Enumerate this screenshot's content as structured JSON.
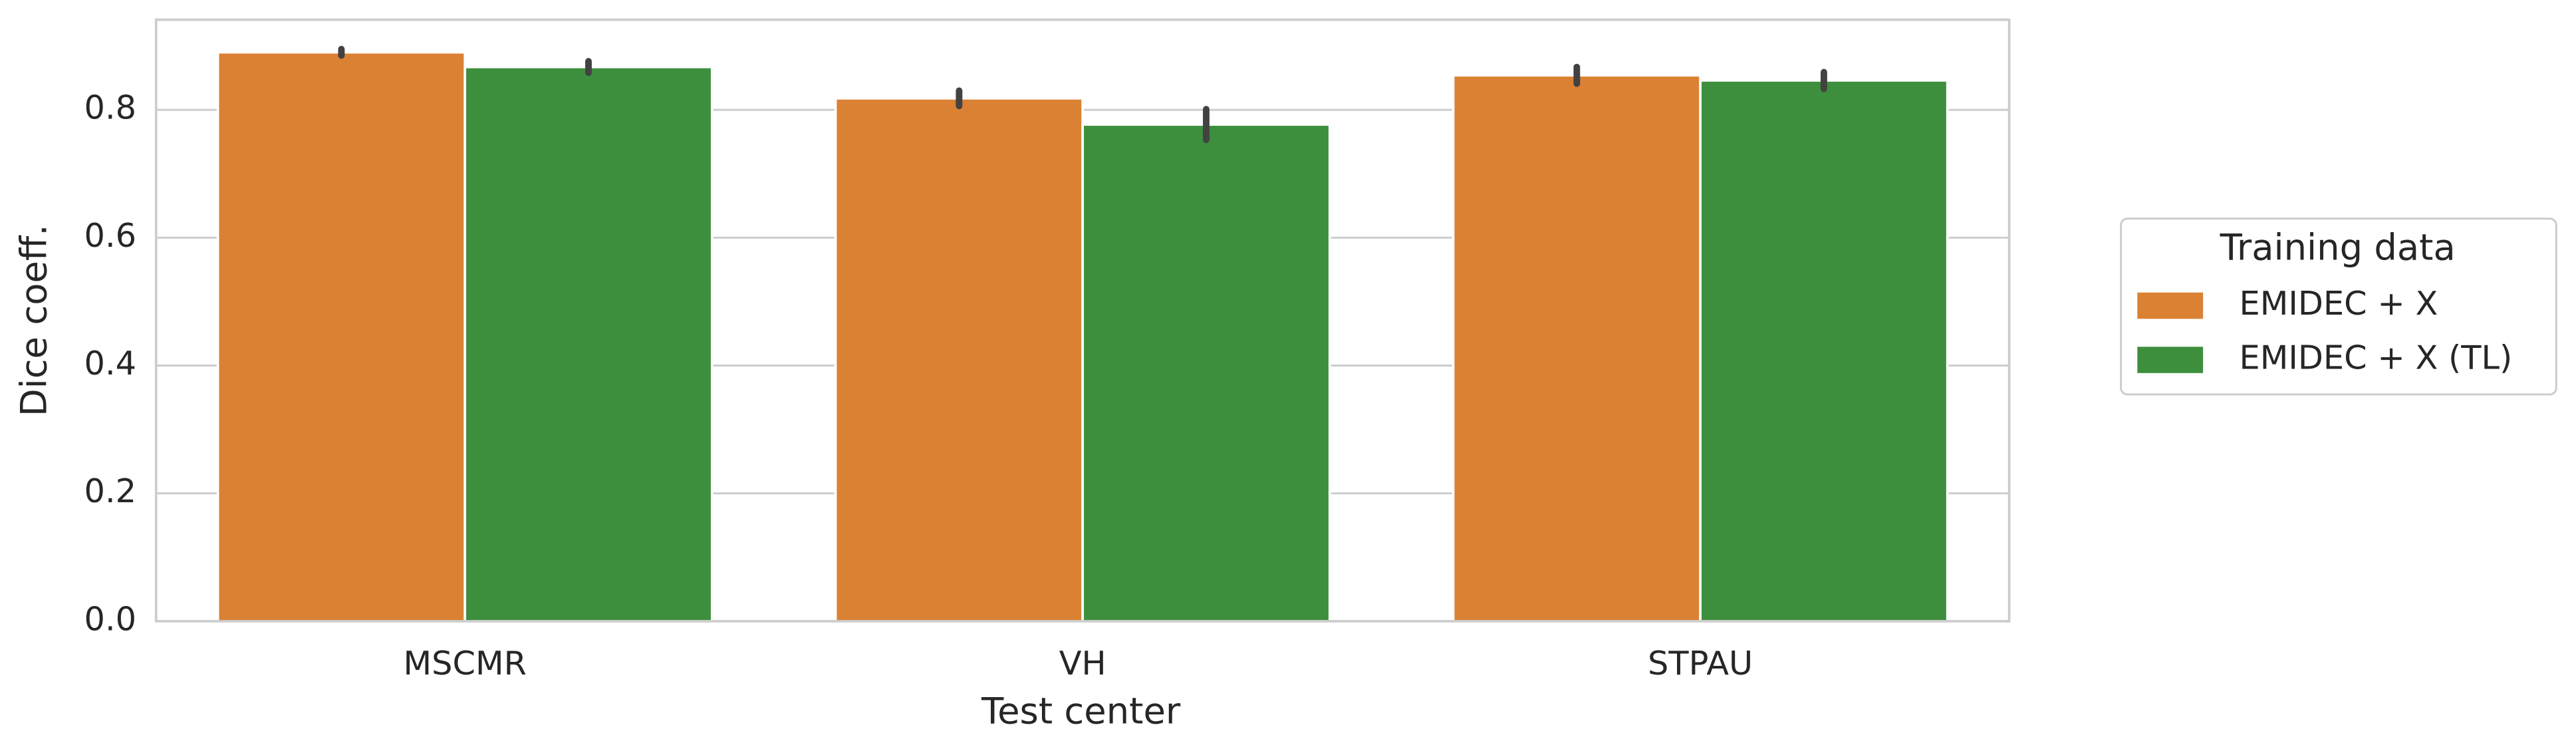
{
  "chart_data": {
    "type": "bar",
    "x_label": "Test center",
    "y_label": "Dice coeff.",
    "categories": [
      "MSCMR",
      "VH",
      "STPAU"
    ],
    "series": [
      {
        "name": "EMIDEC + X",
        "color": "#db8133",
        "values": [
          0.89,
          0.818,
          0.854
        ],
        "errors": [
          0.005,
          0.012,
          0.013
        ]
      },
      {
        "name": "EMIDEC + X (TL)",
        "color": "#3d8f3d",
        "values": [
          0.867,
          0.777,
          0.846
        ],
        "errors": [
          0.009,
          0.024,
          0.013
        ]
      }
    ],
    "ylim": [
      0,
      0.941
    ],
    "yticks": [
      {
        "value": 0,
        "label": "0.0"
      },
      0.2,
      0.4,
      0.6,
      0.8
    ],
    "grid": true,
    "legend_title": "Training data",
    "legend_position": "right"
  }
}
